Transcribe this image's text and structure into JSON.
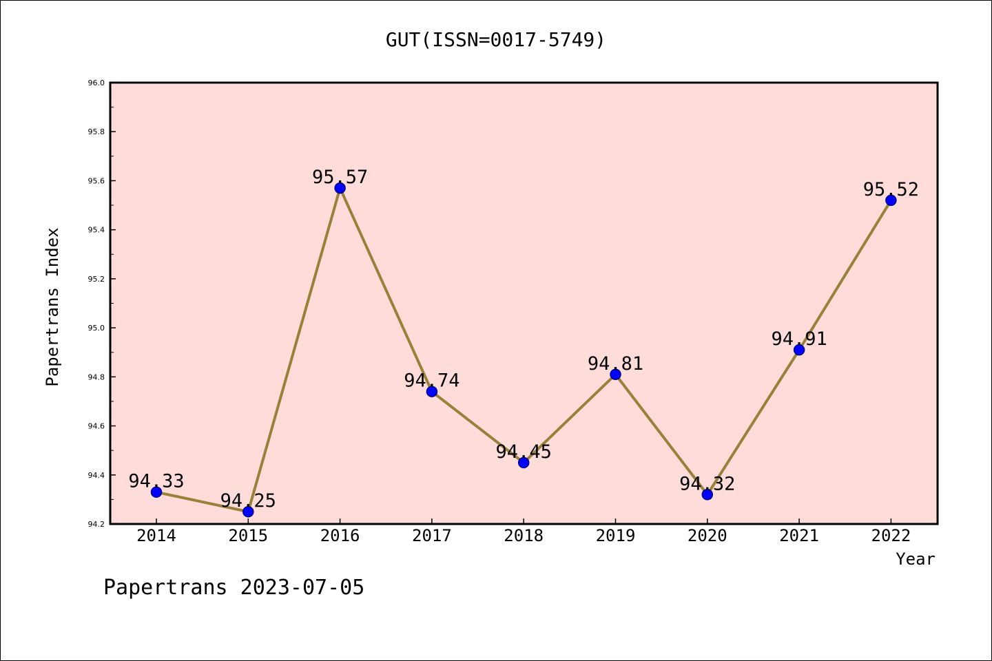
{
  "chart_data": {
    "type": "line",
    "title": "GUT(ISSN=0017-5749)",
    "xlabel": "Year",
    "ylabel": "Papertrans Index",
    "categories": [
      "2014",
      "2015",
      "2016",
      "2017",
      "2018",
      "2019",
      "2020",
      "2021",
      "2022"
    ],
    "values": [
      94.33,
      94.25,
      95.57,
      94.74,
      94.45,
      94.81,
      94.32,
      94.91,
      95.52
    ],
    "data_labels": [
      "94.33",
      "94.25",
      "95.57",
      "94.74",
      "94.45",
      "94.81",
      "94.32",
      "94.91",
      "95.52"
    ],
    "ylim": [
      94.2,
      96.0
    ],
    "yticks": [
      "94.2",
      "94.4",
      "94.6",
      "94.8",
      "95.0",
      "95.2",
      "95.4",
      "95.6",
      "95.8",
      "96.0"
    ],
    "grid": false,
    "legend": "none",
    "colors": {
      "plot_background": "#fddcda",
      "line": "#9a8139",
      "marker": "#0000ff",
      "marker_edge": "#000080"
    }
  },
  "footer": "Papertrans 2023-07-05"
}
